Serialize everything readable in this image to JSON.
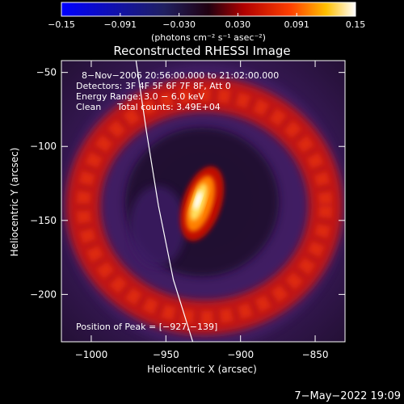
{
  "chart_data": {
    "type": "heatmap",
    "title": "Reconstructed RHESSI Image",
    "colorbar": {
      "ticks": [
        "-0.15",
        "-0.091",
        "-0.030",
        "0.030",
        "0.091",
        "0.15"
      ],
      "range": [
        -0.15,
        0.15
      ],
      "unit_label": "(photons cm⁻² s⁻¹ asec⁻²)"
    },
    "xlabel": "Heliocentric X (arcsec)",
    "ylabel": "Heliocentric Y (arcsec)",
    "xlim": [
      -1020,
      -830
    ],
    "ylim": [
      -232,
      -42
    ],
    "xticks": [
      {
        "value": -1000,
        "label": "−1000"
      },
      {
        "value": -950,
        "label": "−950"
      },
      {
        "value": -900,
        "label": "−900"
      },
      {
        "value": -850,
        "label": "−850"
      }
    ],
    "yticks": [
      {
        "value": -50,
        "label": "−50"
      },
      {
        "value": -100,
        "label": "−100"
      },
      {
        "value": -150,
        "label": "−150"
      },
      {
        "value": -200,
        "label": "−200"
      }
    ],
    "annotations": {
      "time": "8−Nov−2006 20:56:00.000 to 21:02:00.000",
      "detectors": "Detectors: 3F 4F 5F 6F 7F 8F, Att 0",
      "energy": "Energy Range: 3.0 − 6.0 keV",
      "method": "Clean",
      "counts": "Total counts: 3.49E+04",
      "peak": "Position of Peak = [−927,−139]"
    },
    "peak": {
      "x": -927,
      "y": -139
    },
    "ring": {
      "center": [
        -925,
        -140
      ],
      "radius": 72
    },
    "limb_curve": [
      [
        -970,
        -42
      ],
      [
        -963,
        -90
      ],
      [
        -955,
        -140
      ],
      [
        -945,
        -190
      ],
      [
        -932,
        -232
      ]
    ],
    "footer": "7−May−2022 19:09"
  }
}
